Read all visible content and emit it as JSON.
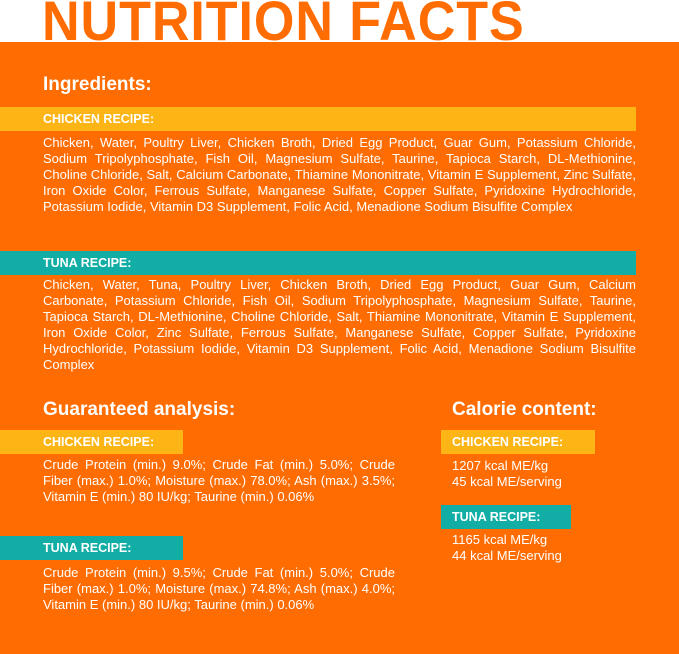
{
  "title": "NUTRITION FACTS",
  "ingredients": {
    "heading": "Ingredients:",
    "chicken": {
      "label": "CHICKEN RECIPE:",
      "text": "Chicken, Water, Poultry Liver, Chicken Broth, Dried Egg Product, Guar Gum, Potassium Chloride, Sodium Tripolyphosphate, Fish Oil, Magnesium Sulfate, Taurine, Tapioca Starch, DL-Methionine, Choline Chloride, Salt, Calcium Carbonate, Thiamine Mononitrate, Vitamin E Supplement, Zinc Sulfate, Iron Oxide Color, Ferrous Sulfate, Manganese Sulfate, Copper Sulfate, Pyridoxine Hydrochloride, Potassium Iodide, Vitamin D3 Supplement, Folic Acid, Menadione Sodium Bisulfite Complex"
    },
    "tuna": {
      "label": "TUNA RECIPE:",
      "text": "Chicken, Water, Tuna, Poultry Liver, Chicken Broth, Dried Egg Product, Guar Gum, Calcium Carbonate, Potassium Chloride, Fish Oil, Sodium Tripolyphosphate, Magnesium Sulfate, Taurine, Tapioca Starch, DL-Methionine, Choline Chloride, Salt, Thiamine Mononitrate, Vitamin E Supplement, Iron Oxide Color, Zinc Sulfate, Ferrous Sulfate, Manganese Sulfate, Copper Sulfate, Pyridoxine Hydrochloride, Potassium Iodide, Vitamin D3 Supplement, Folic Acid, Menadione Sodium Bisulfite Complex"
    }
  },
  "analysis": {
    "heading": "Guaranteed analysis:",
    "chicken": {
      "label": "CHICKEN RECIPE:",
      "text": "Crude Protein (min.) 9.0%; Crude Fat (min.) 5.0%; Crude Fiber (max.) 1.0%; Moisture (max.) 78.0%; Ash (max.) 3.5%; Vitamin E (min.) 80 IU/kg; Taurine (min.) 0.06%"
    },
    "tuna": {
      "label": "TUNA RECIPE:",
      "text": "Crude Protein (min.) 9.5%; Crude Fat (min.) 5.0%; Crude Fiber (max.) 1.0%; Moisture (max.) 74.8%; Ash (max.) 4.0%; Vitamin E (min.) 80 IU/kg; Taurine (min.) 0.06%"
    }
  },
  "calories": {
    "heading": "Calorie content:",
    "chicken": {
      "label": "CHICKEN RECIPE:",
      "line1": "1207 kcal ME/kg",
      "line2": "45 kcal ME/serving"
    },
    "tuna": {
      "label": "TUNA RECIPE:",
      "line1": "1165 kcal ME/kg",
      "line2": "44 kcal ME/serving"
    }
  },
  "colors": {
    "background": "#ff6c02",
    "chicken": "#fdb515",
    "tuna": "#12aea5"
  }
}
